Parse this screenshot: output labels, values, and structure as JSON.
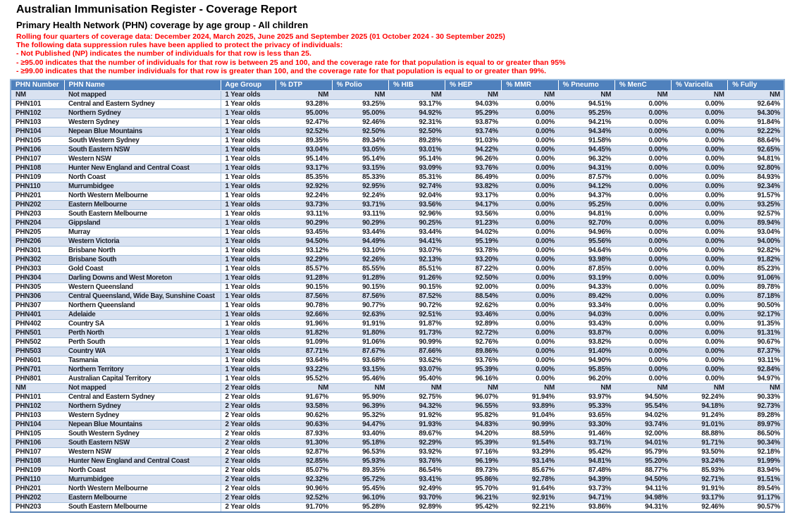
{
  "title": "Australian Immunisation Register - Coverage Report",
  "subtitle": "Primary Health Network (PHN) coverage by age group - All children",
  "notes": [
    "Rolling four quarters of coverage data: December 2024, March 2025, June 2025 and September 2025 (01 October 2024 - 30 September 2025)",
    "The following data suppression rules have been applied to protect the privacy of individuals:",
    "-  Not Published (NP) indicates the number of individuals for that row is less than 25.",
    "-  ≥95.00 indicates that the number of individuals for that row is between 25 and 100, and the coverage rate for that population is equal to or greater than 95%",
    "-  ≥99.00 indicates that the number individuals for that row is greater than 100, and the coverage rate for that population is equal to or greater than 99%."
  ],
  "colors": {
    "header-bg": "#4F81BD",
    "header-text": "#FFFFFF",
    "band": "#D9E2F1",
    "grid": "#A8C2DF",
    "outer-border": "#8FB0D6",
    "note-red": "#FF0000",
    "body-text": "#1A1C24"
  },
  "table": {
    "columns": [
      "PHN Number",
      "PHN Name",
      "Age Group",
      "% DTP",
      "% Polio",
      "% HIB",
      "% HEP",
      "% MMR",
      "% Pneumo",
      "% MenC",
      "% Varicella",
      "% Fully"
    ],
    "rows": [
      [
        "NM",
        "Not mapped",
        "1 Year olds",
        "NM",
        "NM",
        "NM",
        "NM",
        "NM",
        "NM",
        "NM",
        "NM",
        "NM"
      ],
      [
        "PHN101",
        "Central and Eastern Sydney",
        "1 Year olds",
        "93.28%",
        "93.25%",
        "93.17%",
        "94.03%",
        "0.00%",
        "94.51%",
        "0.00%",
        "0.00%",
        "92.64%"
      ],
      [
        "PHN102",
        "Northern Sydney",
        "1 Year olds",
        "95.00%",
        "95.00%",
        "94.92%",
        "95.29%",
        "0.00%",
        "95.25%",
        "0.00%",
        "0.00%",
        "94.30%"
      ],
      [
        "PHN103",
        "Western Sydney",
        "1 Year olds",
        "92.47%",
        "92.46%",
        "92.31%",
        "93.87%",
        "0.00%",
        "94.21%",
        "0.00%",
        "0.00%",
        "91.84%"
      ],
      [
        "PHN104",
        "Nepean Blue Mountains",
        "1 Year olds",
        "92.52%",
        "92.50%",
        "92.50%",
        "93.74%",
        "0.00%",
        "94.34%",
        "0.00%",
        "0.00%",
        "92.22%"
      ],
      [
        "PHN105",
        "South Western Sydney",
        "1 Year olds",
        "89.35%",
        "89.34%",
        "89.28%",
        "91.03%",
        "0.00%",
        "91.58%",
        "0.00%",
        "0.00%",
        "88.64%"
      ],
      [
        "PHN106",
        "South Eastern NSW",
        "1 Year olds",
        "93.04%",
        "93.05%",
        "93.01%",
        "94.22%",
        "0.00%",
        "94.45%",
        "0.00%",
        "0.00%",
        "92.65%"
      ],
      [
        "PHN107",
        "Western NSW",
        "1 Year olds",
        "95.14%",
        "95.14%",
        "95.14%",
        "96.26%",
        "0.00%",
        "96.32%",
        "0.00%",
        "0.00%",
        "94.81%"
      ],
      [
        "PHN108",
        "Hunter New England and Central Coast",
        "1 Year olds",
        "93.17%",
        "93.15%",
        "93.09%",
        "93.76%",
        "0.00%",
        "94.31%",
        "0.00%",
        "0.00%",
        "92.80%"
      ],
      [
        "PHN109",
        "North Coast",
        "1 Year olds",
        "85.35%",
        "85.33%",
        "85.31%",
        "86.49%",
        "0.00%",
        "87.57%",
        "0.00%",
        "0.00%",
        "84.93%"
      ],
      [
        "PHN110",
        "Murrumbidgee",
        "1 Year olds",
        "92.92%",
        "92.95%",
        "92.74%",
        "93.82%",
        "0.00%",
        "94.12%",
        "0.00%",
        "0.00%",
        "92.34%"
      ],
      [
        "PHN201",
        "North Western Melbourne",
        "1 Year olds",
        "92.24%",
        "92.24%",
        "92.04%",
        "93.17%",
        "0.00%",
        "94.37%",
        "0.00%",
        "0.00%",
        "91.57%"
      ],
      [
        "PHN202",
        "Eastern Melbourne",
        "1 Year olds",
        "93.73%",
        "93.71%",
        "93.56%",
        "94.17%",
        "0.00%",
        "95.25%",
        "0.00%",
        "0.00%",
        "93.25%"
      ],
      [
        "PHN203",
        "South Eastern Melbourne",
        "1 Year olds",
        "93.11%",
        "93.11%",
        "92.96%",
        "93.56%",
        "0.00%",
        "94.81%",
        "0.00%",
        "0.00%",
        "92.57%"
      ],
      [
        "PHN204",
        "Gippsland",
        "1 Year olds",
        "90.29%",
        "90.29%",
        "90.25%",
        "91.23%",
        "0.00%",
        "92.70%",
        "0.00%",
        "0.00%",
        "89.94%"
      ],
      [
        "PHN205",
        "Murray",
        "1 Year olds",
        "93.45%",
        "93.44%",
        "93.44%",
        "94.02%",
        "0.00%",
        "94.96%",
        "0.00%",
        "0.00%",
        "93.04%"
      ],
      [
        "PHN206",
        "Western Victoria",
        "1 Year olds",
        "94.50%",
        "94.49%",
        "94.41%",
        "95.19%",
        "0.00%",
        "95.56%",
        "0.00%",
        "0.00%",
        "94.00%"
      ],
      [
        "PHN301",
        "Brisbane North",
        "1 Year olds",
        "93.12%",
        "93.10%",
        "93.07%",
        "93.78%",
        "0.00%",
        "94.64%",
        "0.00%",
        "0.00%",
        "92.82%"
      ],
      [
        "PHN302",
        "Brisbane South",
        "1 Year olds",
        "92.29%",
        "92.26%",
        "92.13%",
        "93.20%",
        "0.00%",
        "93.98%",
        "0.00%",
        "0.00%",
        "91.82%"
      ],
      [
        "PHN303",
        "Gold Coast",
        "1 Year olds",
        "85.57%",
        "85.55%",
        "85.51%",
        "87.22%",
        "0.00%",
        "87.85%",
        "0.00%",
        "0.00%",
        "85.23%"
      ],
      [
        "PHN304",
        "Darling Downs and West Moreton",
        "1 Year olds",
        "91.28%",
        "91.28%",
        "91.26%",
        "92.50%",
        "0.00%",
        "93.19%",
        "0.00%",
        "0.00%",
        "91.06%"
      ],
      [
        "PHN305",
        "Western Queensland",
        "1 Year olds",
        "90.15%",
        "90.15%",
        "90.15%",
        "92.00%",
        "0.00%",
        "94.33%",
        "0.00%",
        "0.00%",
        "89.78%"
      ],
      [
        "PHN306",
        "Central Queensland, Wide Bay, Sunshine Coast",
        "1 Year olds",
        "87.56%",
        "87.56%",
        "87.52%",
        "88.54%",
        "0.00%",
        "89.42%",
        "0.00%",
        "0.00%",
        "87.18%"
      ],
      [
        "PHN307",
        "Northern Queensland",
        "1 Year olds",
        "90.78%",
        "90.77%",
        "90.72%",
        "92.62%",
        "0.00%",
        "93.34%",
        "0.00%",
        "0.00%",
        "90.50%"
      ],
      [
        "PHN401",
        "Adelaide",
        "1 Year olds",
        "92.66%",
        "92.63%",
        "92.51%",
        "93.46%",
        "0.00%",
        "94.03%",
        "0.00%",
        "0.00%",
        "92.17%"
      ],
      [
        "PHN402",
        "Country SA",
        "1 Year olds",
        "91.96%",
        "91.91%",
        "91.87%",
        "92.89%",
        "0.00%",
        "93.43%",
        "0.00%",
        "0.00%",
        "91.35%"
      ],
      [
        "PHN501",
        "Perth North",
        "1 Year olds",
        "91.82%",
        "91.80%",
        "91.73%",
        "92.72%",
        "0.00%",
        "93.87%",
        "0.00%",
        "0.00%",
        "91.31%"
      ],
      [
        "PHN502",
        "Perth South",
        "1 Year olds",
        "91.09%",
        "91.06%",
        "90.99%",
        "92.76%",
        "0.00%",
        "93.82%",
        "0.00%",
        "0.00%",
        "90.67%"
      ],
      [
        "PHN503",
        "Country WA",
        "1 Year olds",
        "87.71%",
        "87.67%",
        "87.66%",
        "89.86%",
        "0.00%",
        "91.40%",
        "0.00%",
        "0.00%",
        "87.37%"
      ],
      [
        "PHN601",
        "Tasmania",
        "1 Year olds",
        "93.64%",
        "93.68%",
        "93.62%",
        "93.76%",
        "0.00%",
        "94.90%",
        "0.00%",
        "0.00%",
        "93.11%"
      ],
      [
        "PHN701",
        "Northern Territory",
        "1 Year olds",
        "93.22%",
        "93.15%",
        "93.07%",
        "95.39%",
        "0.00%",
        "95.85%",
        "0.00%",
        "0.00%",
        "92.84%"
      ],
      [
        "PHN801",
        "Australian Capital Territory",
        "1 Year olds",
        "95.52%",
        "95.46%",
        "95.40%",
        "96.16%",
        "0.00%",
        "96.20%",
        "0.00%",
        "0.00%",
        "94.97%"
      ],
      [
        "NM",
        "Not mapped",
        "2 Year olds",
        "NM",
        "NM",
        "NM",
        "NM",
        "NM",
        "NM",
        "NM",
        "NM",
        "NM"
      ],
      [
        "PHN101",
        "Central and Eastern Sydney",
        "2 Year olds",
        "91.67%",
        "95.90%",
        "92.75%",
        "96.07%",
        "91.94%",
        "93.97%",
        "94.50%",
        "92.24%",
        "90.33%"
      ],
      [
        "PHN102",
        "Northern Sydney",
        "2 Year olds",
        "93.58%",
        "96.39%",
        "94.32%",
        "96.55%",
        "93.89%",
        "95.33%",
        "95.54%",
        "94.18%",
        "92.73%"
      ],
      [
        "PHN103",
        "Western Sydney",
        "2 Year olds",
        "90.62%",
        "95.32%",
        "91.92%",
        "95.82%",
        "91.04%",
        "93.65%",
        "94.02%",
        "91.24%",
        "89.28%"
      ],
      [
        "PHN104",
        "Nepean Blue Mountains",
        "2 Year olds",
        "90.63%",
        "94.47%",
        "91.93%",
        "94.83%",
        "90.99%",
        "93.30%",
        "93.74%",
        "91.01%",
        "89.97%"
      ],
      [
        "PHN105",
        "South Western Sydney",
        "2 Year olds",
        "87.93%",
        "93.40%",
        "89.67%",
        "94.20%",
        "88.59%",
        "91.46%",
        "92.00%",
        "88.88%",
        "86.50%"
      ],
      [
        "PHN106",
        "South Eastern NSW",
        "2 Year olds",
        "91.30%",
        "95.18%",
        "92.29%",
        "95.39%",
        "91.54%",
        "93.71%",
        "94.01%",
        "91.71%",
        "90.34%"
      ],
      [
        "PHN107",
        "Western NSW",
        "2 Year olds",
        "92.87%",
        "96.53%",
        "93.92%",
        "97.16%",
        "93.29%",
        "95.42%",
        "95.79%",
        "93.50%",
        "92.18%"
      ],
      [
        "PHN108",
        "Hunter New England and Central Coast",
        "2 Year olds",
        "92.85%",
        "95.93%",
        "93.76%",
        "96.19%",
        "93.14%",
        "94.81%",
        "95.20%",
        "93.24%",
        "91.99%"
      ],
      [
        "PHN109",
        "North Coast",
        "2 Year olds",
        "85.07%",
        "89.35%",
        "86.54%",
        "89.73%",
        "85.67%",
        "87.48%",
        "88.77%",
        "85.93%",
        "83.94%"
      ],
      [
        "PHN110",
        "Murrumbidgee",
        "2 Year olds",
        "92.32%",
        "95.72%",
        "93.41%",
        "95.86%",
        "92.78%",
        "94.39%",
        "94.50%",
        "92.71%",
        "91.51%"
      ],
      [
        "PHN201",
        "North Western Melbourne",
        "2 Year olds",
        "90.96%",
        "95.45%",
        "92.49%",
        "95.70%",
        "91.64%",
        "93.73%",
        "94.11%",
        "91.91%",
        "89.54%"
      ],
      [
        "PHN202",
        "Eastern Melbourne",
        "2 Year olds",
        "92.52%",
        "96.10%",
        "93.70%",
        "96.21%",
        "92.91%",
        "94.71%",
        "94.98%",
        "93.17%",
        "91.17%"
      ],
      [
        "PHN203",
        "South Eastern Melbourne",
        "2 Year olds",
        "91.70%",
        "95.28%",
        "92.89%",
        "95.42%",
        "92.21%",
        "93.86%",
        "94.31%",
        "92.46%",
        "90.57%"
      ]
    ]
  }
}
